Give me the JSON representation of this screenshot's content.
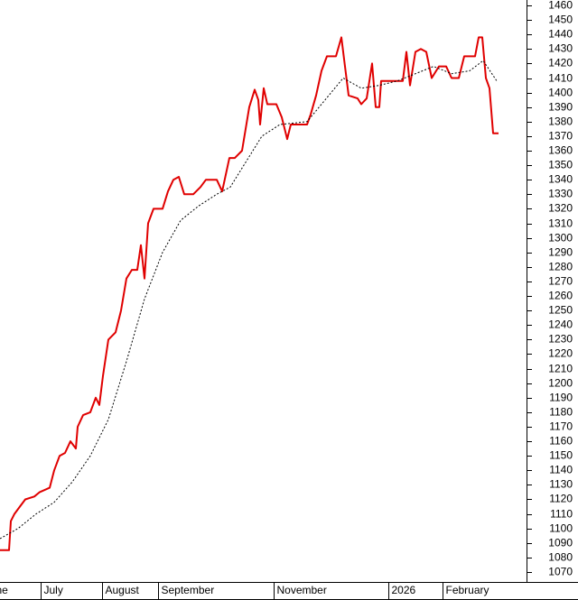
{
  "chart_data": {
    "type": "line",
    "xlim": [
      0,
      583
    ],
    "ylim": [
      1070,
      1460
    ],
    "yticks": [
      1070,
      1080,
      1090,
      1100,
      1110,
      1120,
      1130,
      1140,
      1150,
      1160,
      1170,
      1180,
      1190,
      1200,
      1210,
      1220,
      1230,
      1240,
      1250,
      1260,
      1270,
      1280,
      1290,
      1300,
      1310,
      1320,
      1330,
      1340,
      1350,
      1360,
      1370,
      1380,
      1390,
      1400,
      1410,
      1420,
      1430,
      1440,
      1450,
      1460
    ],
    "xticks": [
      {
        "value": -8,
        "label": "ne"
      },
      {
        "value": 45,
        "label": "July"
      },
      {
        "value": 113,
        "label": "August"
      },
      {
        "value": 175,
        "label": "September"
      },
      {
        "value": 303,
        "label": "November"
      },
      {
        "value": 430,
        "label": "2026"
      },
      {
        "value": 490,
        "label": "February"
      }
    ],
    "series": [
      {
        "color": "#e00000",
        "x": [
          0,
          10,
          12,
          16,
          22,
          28,
          38,
          44,
          55,
          60,
          66,
          72,
          78,
          84,
          86,
          92,
          100,
          106,
          110,
          114,
          120,
          128,
          134,
          140,
          146,
          152,
          156,
          160,
          164,
          170,
          180,
          186,
          192,
          198,
          204,
          214,
          222,
          228,
          240,
          246,
          254,
          260,
          268,
          276,
          282,
          286,
          288,
          292,
          296,
          306,
          312,
          318,
          322,
          340,
          344,
          350,
          356,
          362,
          372,
          378,
          386,
          396,
          400,
          406,
          412,
          416,
          420,
          422,
          440,
          446,
          450,
          454,
          460,
          466,
          472,
          478,
          486,
          494,
          500,
          508,
          514,
          526,
          530,
          534,
          538,
          542,
          546,
          552
        ],
        "values": [
          1085,
          1085,
          1105,
          1110,
          1115,
          1120,
          1122,
          1125,
          1128,
          1140,
          1150,
          1152,
          1160,
          1155,
          1170,
          1178,
          1180,
          1190,
          1185,
          1205,
          1230,
          1235,
          1250,
          1272,
          1278,
          1278,
          1295,
          1272,
          1310,
          1320,
          1320,
          1332,
          1340,
          1342,
          1330,
          1330,
          1335,
          1340,
          1340,
          1332,
          1355,
          1355,
          1360,
          1390,
          1402,
          1395,
          1378,
          1403,
          1392,
          1392,
          1383,
          1368,
          1378,
          1378,
          1385,
          1398,
          1415,
          1425,
          1425,
          1438,
          1398,
          1396,
          1392,
          1396,
          1420,
          1390,
          1390,
          1408,
          1408,
          1408,
          1428,
          1405,
          1428,
          1430,
          1428,
          1410,
          1418,
          1418,
          1410,
          1410,
          1425,
          1425,
          1438,
          1438,
          1410,
          1403,
          1372,
          1372
        ]
      },
      {
        "color": "#000000",
        "x": [
          0,
          20,
          40,
          60,
          80,
          100,
          120,
          140,
          160,
          180,
          200,
          220,
          240,
          255,
          270,
          290,
          310,
          340,
          360,
          380,
          400,
          420,
          440,
          460,
          480,
          500,
          520,
          535,
          550
        ],
        "values": [
          1093,
          1100,
          1110,
          1118,
          1132,
          1150,
          1175,
          1215,
          1258,
          1290,
          1312,
          1322,
          1330,
          1335,
          1350,
          1370,
          1378,
          1380,
          1395,
          1410,
          1403,
          1405,
          1408,
          1413,
          1418,
          1413,
          1415,
          1422,
          1408
        ]
      }
    ]
  }
}
